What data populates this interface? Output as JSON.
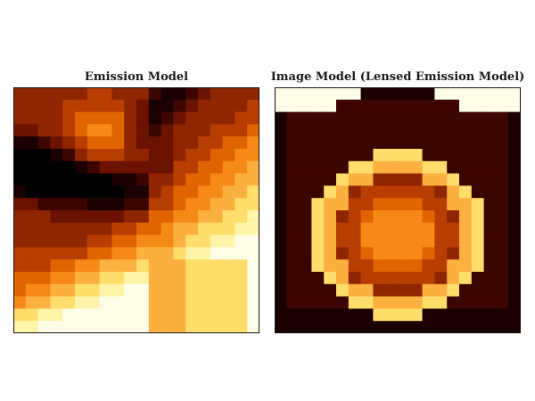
{
  "chart_data": [
    {
      "type": "heatmap",
      "title": "Emission Model",
      "xlabel": "",
      "ylabel": "",
      "grid": false,
      "colormap": "afmhot",
      "resolution": [
        20,
        20
      ],
      "description": "pixelated brightness map; dark arms from the left and upper-right meeting near the center, bright region to the lower-right"
    },
    {
      "type": "heatmap",
      "title": "Image Model (Lensed Emission Model)",
      "xlabel": "",
      "ylabel": "",
      "grid": false,
      "colormap": "afmhot",
      "resolution": [
        20,
        20
      ],
      "description": "dark background with a bright pixelated ring enclosing an orange central source; white strip across the top"
    }
  ],
  "colors": {
    "black": "#000000",
    "darkest": "#1a0000",
    "dark_red": "#3d0500",
    "maroon": "#6b1200",
    "red_brown": "#8f2600",
    "orange_dark": "#b83d00",
    "orange": "#e06400",
    "orange_light": "#f58a16",
    "amber": "#fbb040",
    "yellow": "#ffde6c",
    "pale_yellow": "#fff4a8",
    "cream": "#fffde8"
  }
}
